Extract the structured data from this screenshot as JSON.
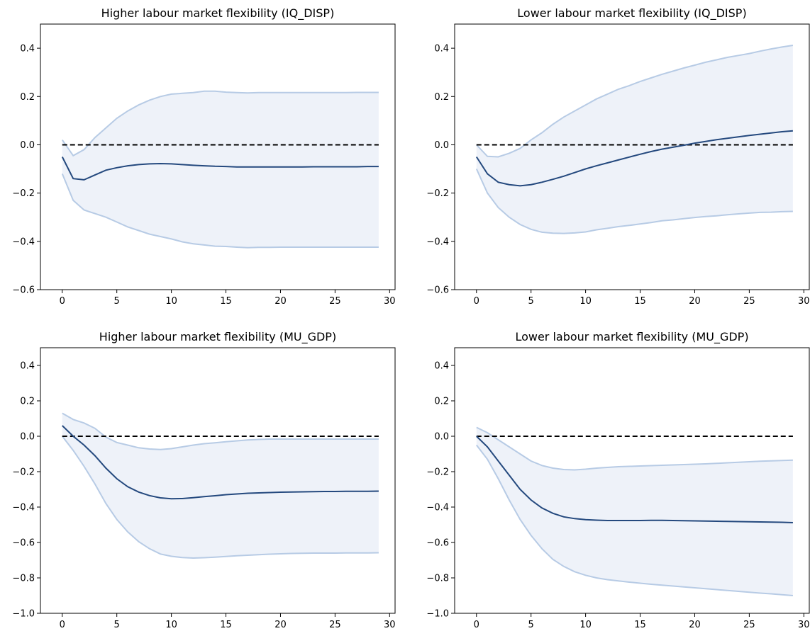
{
  "colors": {
    "band_fill": "#eef2f9",
    "bound_line": "#b7cbe5",
    "mean_line": "#24497e",
    "zero_line": "#000000"
  },
  "chart_data": [
    {
      "type": "line",
      "title": "Higher labour market flexibility (IQ_DISP)",
      "xlim": [
        -2,
        30.5
      ],
      "ylim": [
        -0.6,
        0.5
      ],
      "xticks": [
        0,
        5,
        10,
        15,
        20,
        25,
        30
      ],
      "xtick_labels": [
        "0",
        "5",
        "10",
        "15",
        "20",
        "25",
        "30"
      ],
      "yticks": [
        -0.6,
        -0.4,
        -0.2,
        0.0,
        0.2,
        0.4
      ],
      "ytick_labels": [
        "−0.6",
        "−0.4",
        "−0.2",
        "0.0",
        "0.2",
        "0.4"
      ],
      "reference_line": 0,
      "x": [
        0,
        1,
        2,
        3,
        4,
        5,
        6,
        7,
        8,
        9,
        10,
        11,
        12,
        13,
        14,
        15,
        16,
        17,
        18,
        19,
        20,
        21,
        22,
        23,
        24,
        25,
        26,
        27,
        28,
        29
      ],
      "series": [
        {
          "role": "upper",
          "values": [
            0.02,
            -0.045,
            -0.02,
            0.03,
            0.07,
            0.11,
            0.14,
            0.165,
            0.185,
            0.2,
            0.21,
            0.213,
            0.216,
            0.222,
            0.222,
            0.218,
            0.216,
            0.215,
            0.216,
            0.216,
            0.216,
            0.216,
            0.216,
            0.216,
            0.216,
            0.216,
            0.216,
            0.217,
            0.217,
            0.217
          ]
        },
        {
          "role": "mean",
          "values": [
            -0.05,
            -0.14,
            -0.145,
            -0.125,
            -0.105,
            -0.095,
            -0.087,
            -0.082,
            -0.079,
            -0.078,
            -0.079,
            -0.082,
            -0.085,
            -0.087,
            -0.089,
            -0.09,
            -0.092,
            -0.092,
            -0.092,
            -0.092,
            -0.092,
            -0.092,
            -0.092,
            -0.091,
            -0.091,
            -0.091,
            -0.091,
            -0.091,
            -0.09,
            -0.09
          ]
        },
        {
          "role": "lower",
          "values": [
            -0.12,
            -0.23,
            -0.27,
            -0.285,
            -0.3,
            -0.32,
            -0.34,
            -0.355,
            -0.37,
            -0.38,
            -0.39,
            -0.402,
            -0.41,
            -0.415,
            -0.42,
            -0.421,
            -0.424,
            -0.426,
            -0.425,
            -0.425,
            -0.424,
            -0.424,
            -0.424,
            -0.424,
            -0.424,
            -0.424,
            -0.424,
            -0.424,
            -0.424,
            -0.424
          ]
        }
      ]
    },
    {
      "type": "line",
      "title": "Lower labour market flexibility (IQ_DISP)",
      "xlim": [
        -2,
        30.5
      ],
      "ylim": [
        -0.6,
        0.5
      ],
      "xticks": [
        0,
        5,
        10,
        15,
        20,
        25,
        30
      ],
      "xtick_labels": [
        "0",
        "5",
        "10",
        "15",
        "20",
        "25",
        "30"
      ],
      "yticks": [
        -0.6,
        -0.4,
        -0.2,
        0.0,
        0.2,
        0.4
      ],
      "ytick_labels": [
        "−0.6",
        "−0.4",
        "−0.2",
        "0.0",
        "0.2",
        "0.4"
      ],
      "reference_line": 0,
      "x": [
        0,
        1,
        2,
        3,
        4,
        5,
        6,
        7,
        8,
        9,
        10,
        11,
        12,
        13,
        14,
        15,
        16,
        17,
        18,
        19,
        20,
        21,
        22,
        23,
        24,
        25,
        26,
        27,
        28,
        29
      ],
      "series": [
        {
          "role": "upper",
          "values": [
            0.0,
            -0.048,
            -0.05,
            -0.035,
            -0.015,
            0.02,
            0.05,
            0.085,
            0.115,
            0.14,
            0.165,
            0.19,
            0.21,
            0.23,
            0.245,
            0.262,
            0.277,
            0.292,
            0.305,
            0.318,
            0.33,
            0.342,
            0.352,
            0.362,
            0.37,
            0.378,
            0.388,
            0.397,
            0.405,
            0.412
          ]
        },
        {
          "role": "mean",
          "values": [
            -0.05,
            -0.12,
            -0.155,
            -0.165,
            -0.17,
            -0.165,
            -0.155,
            -0.143,
            -0.13,
            -0.115,
            -0.1,
            -0.087,
            -0.075,
            -0.063,
            -0.051,
            -0.039,
            -0.028,
            -0.018,
            -0.01,
            -0.002,
            0.007,
            0.014,
            0.021,
            0.027,
            0.033,
            0.039,
            0.044,
            0.049,
            0.054,
            0.058
          ]
        },
        {
          "role": "lower",
          "values": [
            -0.1,
            -0.2,
            -0.26,
            -0.3,
            -0.33,
            -0.35,
            -0.362,
            -0.366,
            -0.367,
            -0.365,
            -0.361,
            -0.352,
            -0.346,
            -0.339,
            -0.334,
            -0.328,
            -0.322,
            -0.315,
            -0.311,
            -0.306,
            -0.301,
            -0.297,
            -0.294,
            -0.29,
            -0.286,
            -0.283,
            -0.28,
            -0.279,
            -0.277,
            -0.276
          ]
        }
      ]
    },
    {
      "type": "line",
      "title": "Higher labour market flexibility (MU_GDP)",
      "xlim": [
        -2,
        30.5
      ],
      "ylim": [
        -1.0,
        0.5
      ],
      "xticks": [
        0,
        5,
        10,
        15,
        20,
        25,
        30
      ],
      "xtick_labels": [
        "0",
        "5",
        "10",
        "15",
        "20",
        "25",
        "30"
      ],
      "yticks": [
        -1.0,
        -0.8,
        -0.6,
        -0.4,
        -0.2,
        0.0,
        0.2,
        0.4
      ],
      "ytick_labels": [
        "−1.0",
        "−0.8",
        "−0.6",
        "−0.4",
        "−0.2",
        "0.0",
        "0.2",
        "0.4"
      ],
      "reference_line": 0,
      "x": [
        0,
        1,
        2,
        3,
        4,
        5,
        6,
        7,
        8,
        9,
        10,
        11,
        12,
        13,
        14,
        15,
        16,
        17,
        18,
        19,
        20,
        21,
        22,
        23,
        24,
        25,
        26,
        27,
        28,
        29
      ],
      "series": [
        {
          "role": "upper",
          "values": [
            0.13,
            0.095,
            0.075,
            0.045,
            -0.005,
            -0.035,
            -0.05,
            -0.065,
            -0.072,
            -0.075,
            -0.07,
            -0.06,
            -0.05,
            -0.042,
            -0.037,
            -0.031,
            -0.026,
            -0.021,
            -0.018,
            -0.016,
            -0.016,
            -0.016,
            -0.016,
            -0.016,
            -0.016,
            -0.016,
            -0.016,
            -0.016,
            -0.016,
            -0.016
          ]
        },
        {
          "role": "mean",
          "values": [
            0.06,
            0.0,
            -0.05,
            -0.11,
            -0.18,
            -0.24,
            -0.285,
            -0.315,
            -0.335,
            -0.348,
            -0.353,
            -0.352,
            -0.347,
            -0.341,
            -0.336,
            -0.33,
            -0.326,
            -0.322,
            -0.32,
            -0.318,
            -0.316,
            -0.315,
            -0.314,
            -0.313,
            -0.312,
            -0.312,
            -0.311,
            -0.311,
            -0.311,
            -0.31
          ]
        },
        {
          "role": "lower",
          "values": [
            0.0,
            -0.08,
            -0.17,
            -0.27,
            -0.38,
            -0.47,
            -0.54,
            -0.595,
            -0.635,
            -0.665,
            -0.678,
            -0.685,
            -0.688,
            -0.686,
            -0.683,
            -0.679,
            -0.675,
            -0.672,
            -0.669,
            -0.666,
            -0.664,
            -0.662,
            -0.661,
            -0.66,
            -0.66,
            -0.66,
            -0.659,
            -0.659,
            -0.659,
            -0.658
          ]
        }
      ]
    },
    {
      "type": "line",
      "title": "Lower labour market flexibility (MU_GDP)",
      "xlim": [
        -2,
        30.5
      ],
      "ylim": [
        -1.0,
        0.5
      ],
      "xticks": [
        0,
        5,
        10,
        15,
        20,
        25,
        30
      ],
      "xtick_labels": [
        "0",
        "5",
        "10",
        "15",
        "20",
        "25",
        "30"
      ],
      "yticks": [
        -1.0,
        -0.8,
        -0.6,
        -0.4,
        -0.2,
        0.0,
        0.2,
        0.4
      ],
      "ytick_labels": [
        "−1.0",
        "−0.8",
        "−0.6",
        "−0.4",
        "−0.2",
        "0.0",
        "0.2",
        "0.4"
      ],
      "reference_line": 0,
      "x": [
        0,
        1,
        2,
        3,
        4,
        5,
        6,
        7,
        8,
        9,
        10,
        11,
        12,
        13,
        14,
        15,
        16,
        17,
        18,
        19,
        20,
        21,
        22,
        23,
        24,
        25,
        26,
        27,
        28,
        29
      ],
      "series": [
        {
          "role": "upper",
          "values": [
            0.05,
            0.02,
            -0.02,
            -0.06,
            -0.1,
            -0.14,
            -0.165,
            -0.18,
            -0.188,
            -0.19,
            -0.186,
            -0.18,
            -0.176,
            -0.172,
            -0.17,
            -0.168,
            -0.166,
            -0.164,
            -0.162,
            -0.16,
            -0.158,
            -0.156,
            -0.153,
            -0.15,
            -0.147,
            -0.144,
            -0.141,
            -0.139,
            -0.137,
            -0.135
          ]
        },
        {
          "role": "mean",
          "values": [
            0.0,
            -0.06,
            -0.14,
            -0.22,
            -0.3,
            -0.36,
            -0.405,
            -0.435,
            -0.455,
            -0.465,
            -0.471,
            -0.474,
            -0.476,
            -0.476,
            -0.476,
            -0.476,
            -0.475,
            -0.475,
            -0.476,
            -0.477,
            -0.478,
            -0.479,
            -0.48,
            -0.481,
            -0.482,
            -0.483,
            -0.484,
            -0.485,
            -0.486,
            -0.488
          ]
        },
        {
          "role": "lower",
          "values": [
            -0.05,
            -0.13,
            -0.24,
            -0.36,
            -0.47,
            -0.56,
            -0.635,
            -0.695,
            -0.735,
            -0.765,
            -0.785,
            -0.8,
            -0.81,
            -0.817,
            -0.824,
            -0.83,
            -0.836,
            -0.841,
            -0.846,
            -0.851,
            -0.856,
            -0.861,
            -0.866,
            -0.871,
            -0.876,
            -0.881,
            -0.886,
            -0.89,
            -0.895,
            -0.9
          ]
        }
      ]
    }
  ]
}
